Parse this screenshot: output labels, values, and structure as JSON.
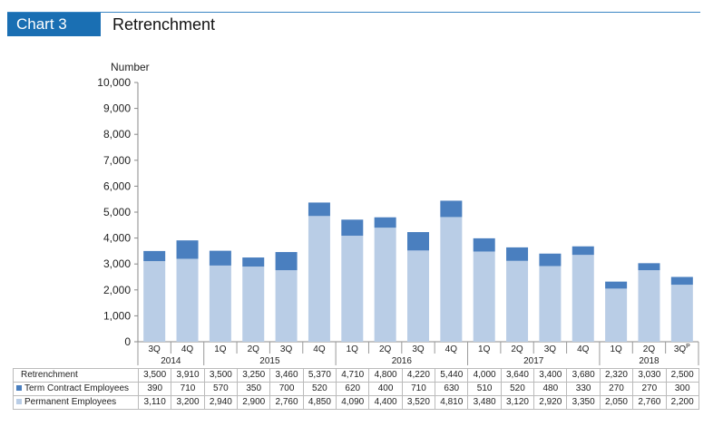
{
  "header": {
    "chart_number": "Chart 3",
    "title": "Retrenchment"
  },
  "colors": {
    "accent": "#1a6fb3",
    "term": "#4a7fbf",
    "permanent": "#b9cde6"
  },
  "chart_data": {
    "type": "bar",
    "stacked": true,
    "ylabel": "Number",
    "ylim": [
      0,
      10000
    ],
    "yticks": [
      "0",
      "1,000",
      "2,000",
      "3,000",
      "4,000",
      "5,000",
      "6,000",
      "7,000",
      "8,000",
      "9,000",
      "10,000"
    ],
    "categories": [
      "3Q",
      "4Q",
      "1Q",
      "2Q",
      "3Q",
      "4Q",
      "1Q",
      "2Q",
      "3Q",
      "4Q",
      "1Q",
      "2Q",
      "3Q",
      "4Q",
      "1Q",
      "2Q",
      "3Q"
    ],
    "category_superscripts": [
      "",
      "",
      "",
      "",
      "",
      "",
      "",
      "",
      "",
      "",
      "",
      "",
      "",
      "",
      "",
      "",
      "P"
    ],
    "years": [
      {
        "label": "2014",
        "span": 2
      },
      {
        "label": "2015",
        "span": 4
      },
      {
        "label": "2016",
        "span": 4
      },
      {
        "label": "2017",
        "span": 4
      },
      {
        "label": "2018",
        "span": 3
      }
    ],
    "series": [
      {
        "name": "Permanent Employees",
        "color": "#b9cde6",
        "values": [
          3110,
          3200,
          2940,
          2900,
          2760,
          4850,
          4090,
          4400,
          3520,
          4810,
          3480,
          3120,
          2920,
          3350,
          2050,
          2760,
          2200
        ]
      },
      {
        "name": "Term Contract Employees",
        "color": "#4a7fbf",
        "values": [
          390,
          710,
          570,
          350,
          700,
          520,
          620,
          400,
          710,
          630,
          510,
          520,
          480,
          330,
          270,
          270,
          300
        ]
      }
    ],
    "table": {
      "rows": [
        {
          "label": "Retrenchment",
          "swatch": "",
          "values": [
            "3,500",
            "3,910",
            "3,500",
            "3,250",
            "3,460",
            "5,370",
            "4,710",
            "4,800",
            "4,220",
            "5,440",
            "4,000",
            "3,640",
            "3,400",
            "3,680",
            "2,320",
            "3,030",
            "2,500"
          ]
        },
        {
          "label": "Term Contract Employees",
          "swatch": "#4a7fbf",
          "values": [
            "390",
            "710",
            "570",
            "350",
            "700",
            "520",
            "620",
            "400",
            "710",
            "630",
            "510",
            "520",
            "480",
            "330",
            "270",
            "270",
            "300"
          ]
        },
        {
          "label": "Permanent Employees",
          "swatch": "#b9cde6",
          "values": [
            "3,110",
            "3,200",
            "2,940",
            "2,900",
            "2,760",
            "4,850",
            "4,090",
            "4,400",
            "3,520",
            "4,810",
            "3,480",
            "3,120",
            "2,920",
            "3,350",
            "2,050",
            "2,760",
            "2,200"
          ]
        }
      ]
    }
  }
}
